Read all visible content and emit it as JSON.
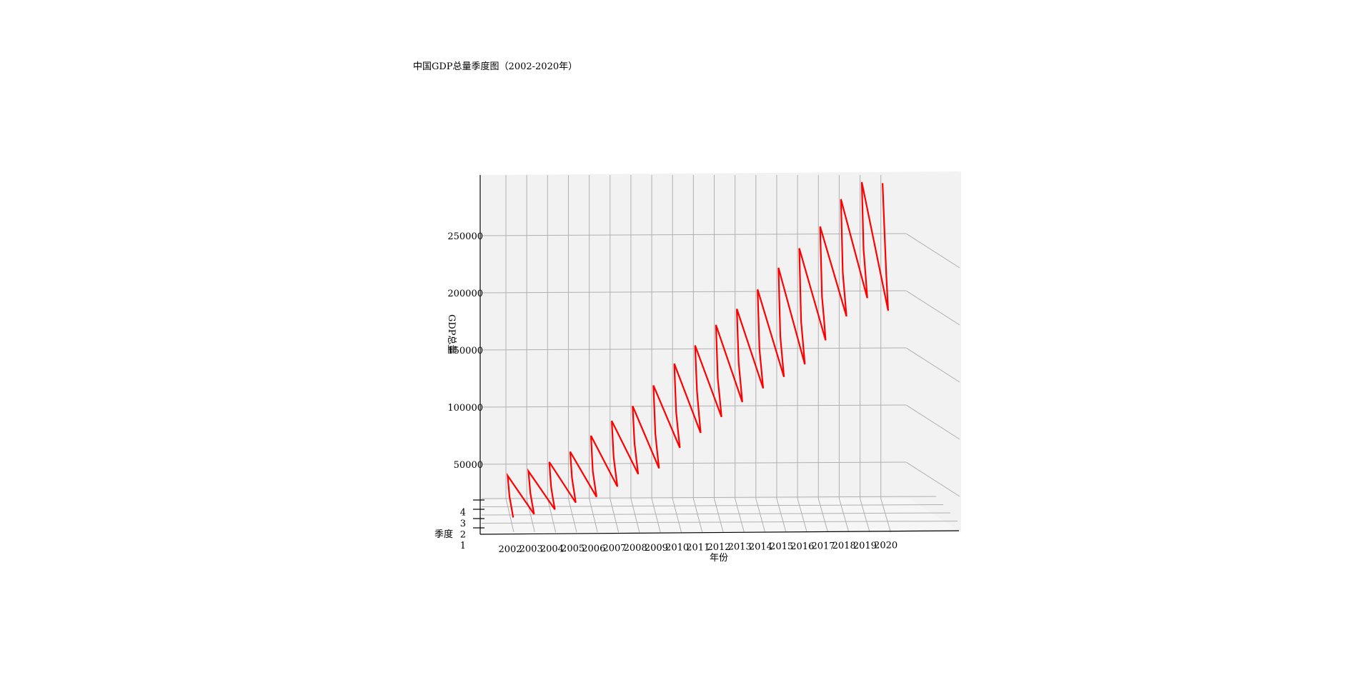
{
  "chart_data": {
    "type": "line",
    "projection": "3d",
    "title": "中国GDP总量季度图（2002-2020年）",
    "xlabel": "年份",
    "ylabel": "季度",
    "zlabel": "GDP总量",
    "x_ticks": [
      "2002",
      "2003",
      "2004",
      "2005",
      "2006",
      "2007",
      "2008",
      "2009",
      "2010",
      "2011",
      "2012",
      "2013",
      "2014",
      "2015",
      "2016",
      "2017",
      "2018",
      "2019",
      "2020"
    ],
    "y_ticks": [
      "1",
      "2",
      "3",
      "4"
    ],
    "z_ticks": [
      "50000",
      "100000",
      "150000",
      "200000",
      "250000"
    ],
    "grid": true,
    "line_color": "#ff0000",
    "series": [
      {
        "x": [
          2002,
          2002,
          2002,
          2002,
          2003,
          2003,
          2003,
          2003,
          2004,
          2004,
          2004,
          2004,
          2005,
          2005,
          2005,
          2005,
          2006,
          2006,
          2006,
          2006,
          2007,
          2007,
          2007,
          2007,
          2008,
          2008,
          2008,
          2008,
          2009,
          2009,
          2009,
          2009,
          2010,
          2010,
          2010,
          2010,
          2011,
          2011,
          2011,
          2011,
          2012,
          2012,
          2012,
          2012,
          2013,
          2013,
          2013,
          2013,
          2014,
          2014,
          2014,
          2014,
          2015,
          2015,
          2015,
          2015,
          2016,
          2016,
          2016,
          2016,
          2017,
          2017,
          2017,
          2017,
          2018,
          2018,
          2018,
          2018,
          2019,
          2019,
          2019,
          2019,
          2020,
          2020,
          2020,
          2020
        ],
        "y": [
          1,
          2,
          3,
          4,
          1,
          2,
          3,
          4,
          1,
          2,
          3,
          4,
          1,
          2,
          3,
          4,
          1,
          2,
          3,
          4,
          1,
          2,
          3,
          4,
          1,
          2,
          3,
          4,
          1,
          2,
          3,
          4,
          1,
          2,
          3,
          4,
          1,
          2,
          3,
          4,
          1,
          2,
          3,
          4,
          1,
          2,
          3,
          4,
          1,
          2,
          3,
          4,
          1,
          2,
          3,
          4,
          1,
          2,
          3,
          4,
          1,
          2,
          3,
          4,
          1,
          2,
          3,
          4,
          1,
          2,
          3,
          4,
          1,
          2,
          3,
          4
        ],
        "z": [
          25000,
          27000,
          29000,
          40000,
          28000,
          30000,
          32000,
          44000,
          32000,
          34000,
          37000,
          52000,
          38000,
          42000,
          45000,
          61000,
          43000,
          47000,
          51000,
          75000,
          52000,
          58000,
          63000,
          88000,
          63000,
          69000,
          76000,
          101000,
          68000,
          76000,
          84000,
          119000,
          86000,
          94000,
          103000,
          138000,
          99000,
          110000,
          121000,
          154000,
          113000,
          123000,
          132000,
          172000,
          126000,
          136000,
          146000,
          186000,
          138000,
          148000,
          158000,
          203000,
          148000,
          158000,
          169000,
          222000,
          159000,
          171000,
          182000,
          239000,
          180000,
          193000,
          204000,
          258000,
          201000,
          213000,
          225000,
          282000,
          217000,
          231000,
          245000,
          297000,
          206000,
          230000,
          262000,
          296000
        ]
      }
    ]
  }
}
